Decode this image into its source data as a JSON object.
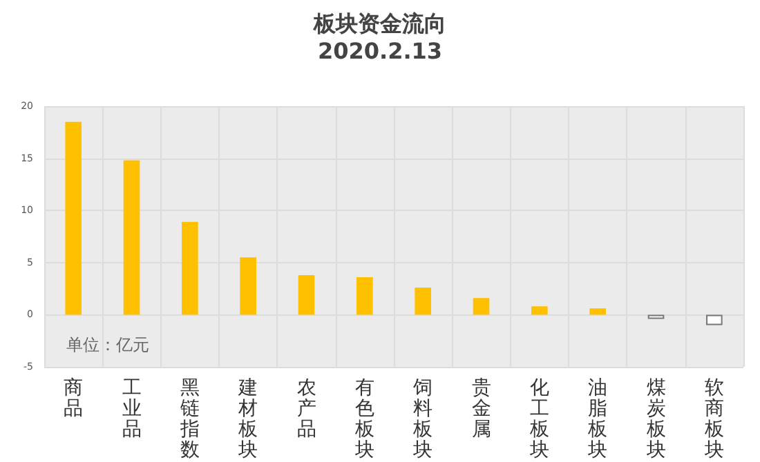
{
  "chart_data": {
    "type": "bar",
    "title": "板块资金流向",
    "subtitle": "2020.2.13",
    "categories": [
      "商品",
      "工业品",
      "黑链指数",
      "建材板块",
      "农产品",
      "有色板块",
      "饲料板块",
      "贵金属",
      "化工板块",
      "油脂板块",
      "煤炭板块",
      "软商板块"
    ],
    "values": [
      18.5,
      14.8,
      8.9,
      5.5,
      3.8,
      3.6,
      2.6,
      1.6,
      0.8,
      0.6,
      -0.4,
      -1.0
    ],
    "colors": [
      "#ffc000",
      "#ffc000",
      "#ffc000",
      "#ffc000",
      "#ffc000",
      "#ffc000",
      "#ffc000",
      "#ffc000",
      "#ffc000",
      "#ffc000",
      "#ffffff",
      "#ffffff"
    ],
    "ylim": [
      -5,
      20
    ],
    "yticks": [
      -5,
      0,
      5,
      10,
      15,
      20
    ],
    "grid": true,
    "annotations": [
      "单位：亿元"
    ]
  }
}
